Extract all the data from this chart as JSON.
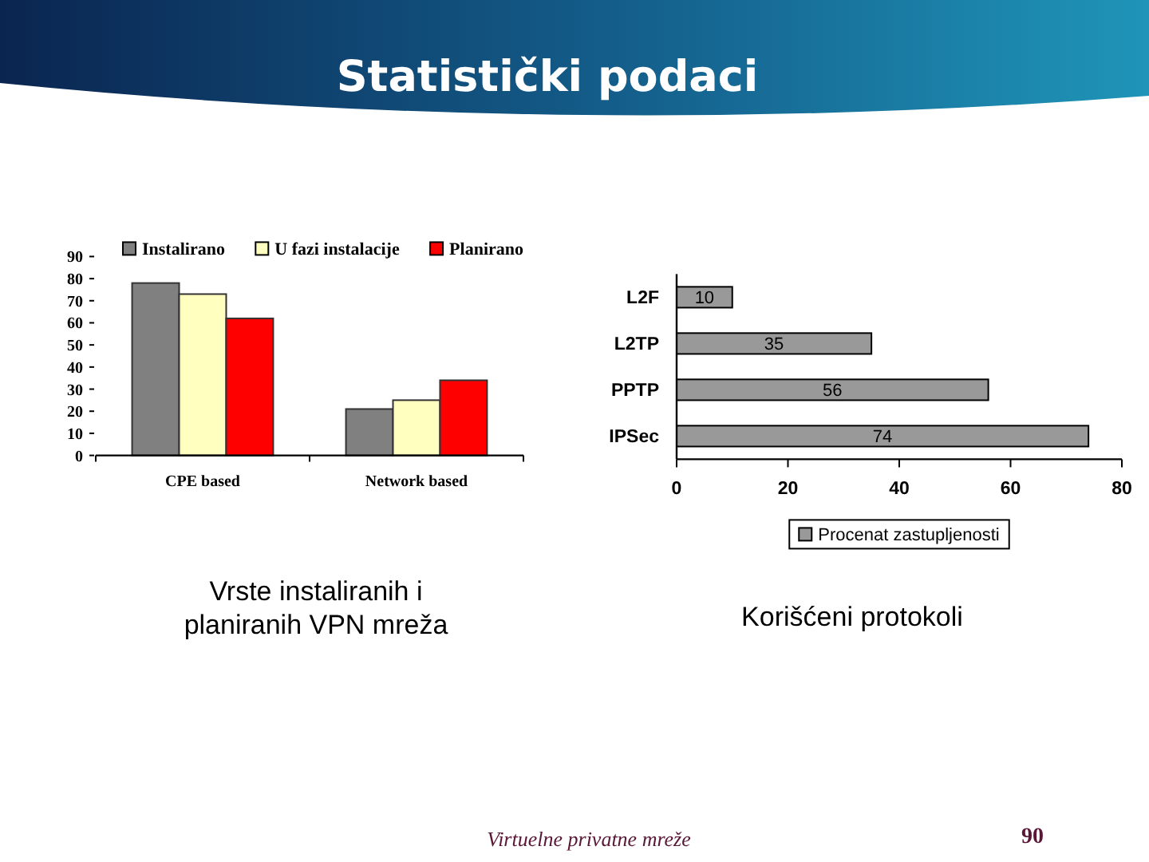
{
  "chart_data": [
    {
      "type": "bar",
      "title": "Vrste instaliranih i planiranih VPN mreža",
      "annotations": [
        "Statistički podaci",
        "Virtuelne privatne mreže",
        "90"
      ],
      "categories": [
        "CPE based",
        "Network based"
      ],
      "series": [
        {
          "name": "Instalirano",
          "color": "#808080",
          "values": [
            78,
            21
          ]
        },
        {
          "name": "U fazi instalacije",
          "color": "#ffffc0",
          "values": [
            73,
            25
          ]
        },
        {
          "name": "Planirano",
          "color": "#ff0000",
          "values": [
            62,
            34
          ]
        }
      ],
      "ylim": [
        0,
        90
      ],
      "yticks": [
        0,
        10,
        20,
        30,
        40,
        50,
        60,
        70,
        80,
        90
      ],
      "legend": "top"
    },
    {
      "type": "bar",
      "title": "Korišćeni protokoli",
      "orientation": "horizontal",
      "categories": [
        "L2F",
        "L2TP",
        "PPTP",
        "IPSec"
      ],
      "series": [
        {
          "name": "Procenat zastupljenosti",
          "color": "#999999",
          "values": [
            10,
            35,
            56,
            74
          ]
        }
      ],
      "xlim": [
        0,
        80
      ],
      "xticks": [
        0,
        20,
        40,
        60,
        80
      ],
      "data_labels": true,
      "legend": "bottom"
    }
  ]
}
